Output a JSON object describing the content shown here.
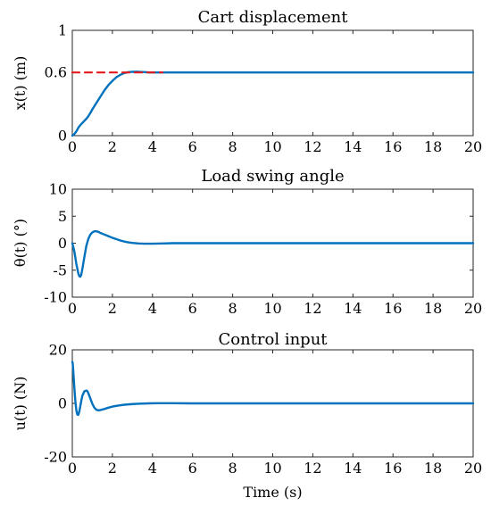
{
  "chart_data": [
    {
      "type": "line",
      "title": "Cart displacement",
      "xlabel": "",
      "ylabel": "x(t) (m)",
      "xlim": [
        0,
        20
      ],
      "ylim": [
        0,
        1
      ],
      "xticks": [
        0,
        2,
        4,
        6,
        8,
        10,
        12,
        14,
        16,
        18,
        20
      ],
      "yticks": [
        0,
        0.6,
        1
      ],
      "grid": false,
      "series": [
        {
          "color": "#0072BD",
          "style": "solid",
          "x": [
            0,
            0.05,
            0.1,
            0.2,
            0.3,
            0.4,
            0.5,
            0.6,
            0.7,
            0.8,
            0.9,
            1.0,
            1.2,
            1.4,
            1.6,
            1.8,
            2.0,
            2.2,
            2.4,
            2.6,
            2.8,
            3.0,
            3.2,
            3.4,
            3.6,
            3.8,
            4.0,
            4.5,
            5.0,
            6,
            8,
            10,
            12,
            14,
            16,
            18,
            20
          ],
          "values": [
            0,
            0.005,
            0.015,
            0.04,
            0.075,
            0.1,
            0.12,
            0.14,
            0.16,
            0.185,
            0.215,
            0.25,
            0.31,
            0.37,
            0.43,
            0.48,
            0.52,
            0.555,
            0.578,
            0.595,
            0.603,
            0.606,
            0.607,
            0.605,
            0.603,
            0.601,
            0.6,
            0.6,
            0.6,
            0.6,
            0.6,
            0.6,
            0.6,
            0.6,
            0.6,
            0.6,
            0.6
          ]
        },
        {
          "color": "#E31A1C",
          "style": "dashed",
          "x": [
            0,
            4.5
          ],
          "values": [
            0.6,
            0.6
          ]
        }
      ]
    },
    {
      "type": "line",
      "title": "Load swing angle",
      "xlabel": "",
      "ylabel": "θ(t) (°)",
      "xlim": [
        0,
        20
      ],
      "ylim": [
        -10,
        10
      ],
      "xticks": [
        0,
        2,
        4,
        6,
        8,
        10,
        12,
        14,
        16,
        18,
        20
      ],
      "yticks": [
        -10,
        -5,
        0,
        5,
        10
      ],
      "grid": false,
      "series": [
        {
          "color": "#0072BD",
          "style": "solid",
          "x": [
            0,
            0.1,
            0.2,
            0.3,
            0.35,
            0.4,
            0.45,
            0.5,
            0.6,
            0.7,
            0.8,
            0.9,
            1.0,
            1.1,
            1.2,
            1.3,
            1.4,
            1.6,
            1.8,
            2.0,
            2.2,
            2.4,
            2.6,
            2.8,
            3.0,
            3.3,
            3.6,
            4.0,
            4.5,
            5,
            6,
            8,
            10,
            12,
            14,
            16,
            18,
            20
          ],
          "values": [
            0,
            -1.5,
            -3.8,
            -5.6,
            -6.1,
            -6.2,
            -5.8,
            -4.8,
            -2.6,
            -0.5,
            0.8,
            1.6,
            2.0,
            2.2,
            2.2,
            2.1,
            1.9,
            1.6,
            1.3,
            1.0,
            0.75,
            0.5,
            0.3,
            0.15,
            0.05,
            -0.05,
            -0.1,
            -0.1,
            -0.05,
            0,
            0,
            0,
            0,
            0,
            0,
            0,
            0,
            0
          ]
        }
      ]
    },
    {
      "type": "line",
      "title": "Control input",
      "xlabel": "Time (s)",
      "ylabel": "u(t) (N)",
      "xlim": [
        0,
        20
      ],
      "ylim": [
        -20,
        20
      ],
      "xticks": [
        0,
        2,
        4,
        6,
        8,
        10,
        12,
        14,
        16,
        18,
        20
      ],
      "yticks": [
        -20,
        0,
        20
      ],
      "grid": false,
      "series": [
        {
          "color": "#0072BD",
          "style": "solid",
          "x": [
            0,
            0.02,
            0.05,
            0.1,
            0.15,
            0.2,
            0.25,
            0.3,
            0.35,
            0.4,
            0.45,
            0.5,
            0.6,
            0.7,
            0.75,
            0.8,
            0.9,
            1.0,
            1.1,
            1.2,
            1.3,
            1.4,
            1.6,
            1.8,
            2.0,
            2.3,
            2.6,
            3.0,
            3.4,
            3.8,
            4.2,
            5,
            6,
            8,
            10,
            12,
            14,
            16,
            18,
            20
          ],
          "values": [
            15.5,
            15.0,
            12.0,
            6.0,
            1.0,
            -2.5,
            -4.2,
            -4.3,
            -3.0,
            -1.0,
            1.0,
            2.8,
            4.5,
            4.8,
            4.6,
            3.8,
            1.8,
            -0.2,
            -1.6,
            -2.4,
            -2.6,
            -2.5,
            -2.1,
            -1.6,
            -1.2,
            -0.8,
            -0.5,
            -0.25,
            -0.1,
            0,
            0.05,
            0.05,
            0,
            0,
            0,
            0,
            0,
            0,
            0,
            0
          ]
        }
      ]
    }
  ]
}
